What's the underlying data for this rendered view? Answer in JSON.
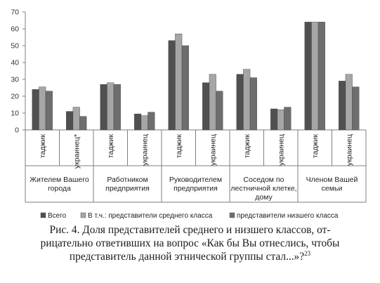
{
  "chart_data": {
    "type": "bar",
    "y_ticks": [
      "0",
      "10",
      "20",
      "30",
      "40",
      "50",
      "60",
      "70"
    ],
    "ylim": [
      0,
      70
    ],
    "grid": false,
    "legend_position": "bottom",
    "groups": [
      {
        "label": "Жителем Вашего города",
        "label_lines": [
          "Жителем Вашего",
          "города"
        ],
        "subcategories": [
          "таджик",
          "украинец*"
        ]
      },
      {
        "label": "Работником предприятия",
        "label_lines": [
          "Работником",
          "предприятия"
        ],
        "subcategories": [
          "таджик",
          "украинец"
        ]
      },
      {
        "label": "Руководителем предприятия",
        "label_lines": [
          "Руководителем",
          "предприятия"
        ],
        "subcategories": [
          "таджик",
          "украинец"
        ]
      },
      {
        "label": "Соседом по лестничной клетке, дому",
        "label_lines": [
          "Соседом по",
          "лестничной клетке,",
          "дому"
        ],
        "subcategories": [
          "таджик",
          "украинец"
        ]
      },
      {
        "label": "Членом Вашей семьи",
        "label_lines": [
          "Членом Вашей",
          "семьи"
        ],
        "subcategories": [
          "таджик",
          "украинец"
        ]
      }
    ],
    "categories": [
      "таджик",
      "украинец*",
      "таджик",
      "украинец",
      "таджик",
      "украинец",
      "таджик",
      "украинец",
      "таджик",
      "украинец"
    ],
    "series": [
      {
        "name": "Всего",
        "color": "#505050",
        "values": [
          24,
          11,
          27,
          9.5,
          53,
          28,
          33,
          12.5,
          64,
          29
        ]
      },
      {
        "name": "В т.ч.: представители среднего класса",
        "color": "#a6a6a6",
        "values": [
          25.5,
          13.5,
          28,
          8.5,
          57,
          33,
          36,
          12,
          64,
          33
        ]
      },
      {
        "name": "представители низшего класса",
        "color": "#6e6e6e",
        "values": [
          23,
          8,
          27,
          10.5,
          50,
          23,
          31,
          13.5,
          64,
          25.5
        ]
      }
    ]
  },
  "caption": {
    "lines": [
      "Рис. 4. Доля представителей среднего и низшего классов, от-",
      "рицательно ответивших на вопрос «Как бы Вы отнеслись, чтобы",
      "представитель данной этнической группы стал...»?"
    ],
    "footnote": "23"
  }
}
